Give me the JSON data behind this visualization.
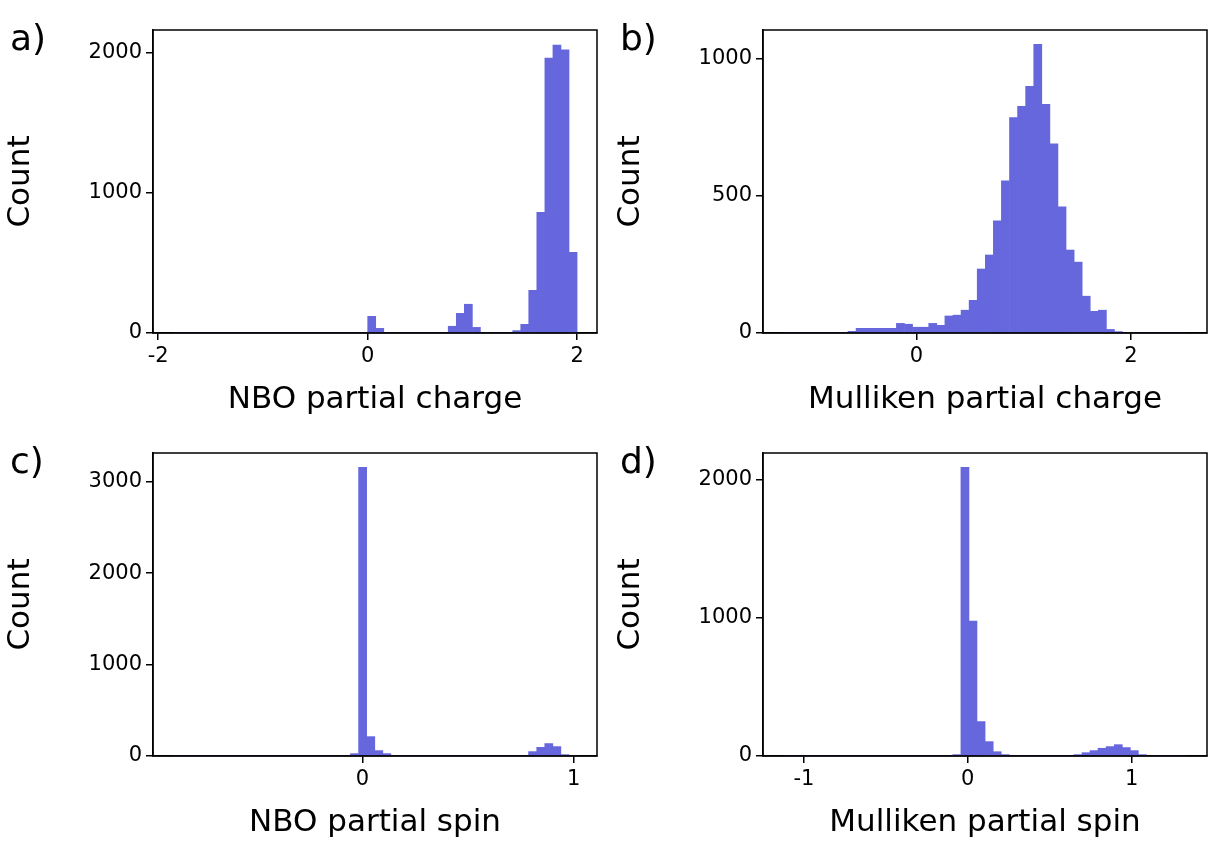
{
  "chart_data": [
    {
      "type": "histogram",
      "title": "a)",
      "xlabel": "NBO partial charge",
      "ylabel": "Count",
      "color": "#6666dd",
      "grid": false,
      "bins": [
        -1.846,
        -1.769,
        -1.692,
        -1.615,
        -1.538,
        -1.462,
        -1.385,
        -1.308,
        -1.231,
        -1.154,
        -1.077,
        -1.0,
        -0.923,
        -0.846,
        -0.769,
        -0.692,
        -0.615,
        -0.538,
        -0.462,
        -0.385,
        -0.308,
        -0.231,
        -0.154,
        -0.077,
        0.0,
        0.077,
        0.154,
        0.231,
        0.308,
        0.385,
        0.462,
        0.538,
        0.615,
        0.692,
        0.769,
        0.846,
        0.923,
        1.0,
        1.077,
        1.154,
        1.231,
        1.308,
        1.385,
        1.462,
        1.538,
        1.615,
        1.692,
        1.769,
        1.846,
        1.923,
        2.0
      ],
      "values": [
        0,
        0,
        0,
        0,
        0,
        0,
        0,
        0,
        0,
        0,
        0,
        0,
        0,
        0,
        0,
        0,
        0,
        0,
        0,
        0,
        0,
        0,
        0,
        0,
        119,
        33,
        0,
        0,
        0,
        0,
        0,
        0,
        0,
        0,
        48,
        140,
        205,
        40,
        0,
        0,
        0,
        0,
        17,
        62,
        304,
        861,
        1960,
        2052,
        2019,
        575
      ],
      "xlim": [
        -2.05,
        2.19
      ],
      "xticks": [
        -2,
        0,
        2
      ],
      "ylim": [
        0,
        2160
      ],
      "yticks": [
        0,
        1000,
        2000
      ]
    },
    {
      "type": "histogram",
      "title": "b)",
      "xlabel": "Mulliken partial charge",
      "ylabel": "Count",
      "color": "#6666dd",
      "grid": false,
      "bins": [
        -1.24,
        -1.165,
        -1.089,
        -1.014,
        -0.939,
        -0.864,
        -0.788,
        -0.713,
        -0.638,
        -0.562,
        -0.487,
        -0.412,
        -0.336,
        -0.261,
        -0.186,
        -0.111,
        -0.035,
        0.04,
        0.115,
        0.191,
        0.266,
        0.341,
        0.417,
        0.492,
        0.567,
        0.643,
        0.718,
        0.793,
        0.868,
        0.944,
        1.019,
        1.094,
        1.17,
        1.245,
        1.32,
        1.396,
        1.471,
        1.546,
        1.621,
        1.697,
        1.772,
        1.847,
        1.923,
        1.998,
        2.073,
        2.149,
        2.224,
        2.299,
        2.374,
        2.45,
        2.525
      ],
      "values": [
        0,
        0,
        0,
        0,
        0,
        0,
        0,
        0,
        6,
        17,
        17,
        17,
        17,
        17,
        35,
        32,
        21,
        21,
        35,
        28,
        62,
        65,
        83,
        119,
        233,
        284,
        408,
        554,
        784,
        825,
        898,
        1051,
        832,
        689,
        459,
        302,
        258,
        134,
        79,
        83,
        13,
        5,
        0,
        0,
        0,
        0,
        0,
        0,
        0,
        0
      ],
      "xlim": [
        -1.43,
        2.71
      ],
      "xticks": [
        0,
        2
      ],
      "ylim": [
        0,
        1103
      ],
      "yticks": [
        0,
        500,
        1000
      ]
    },
    {
      "type": "histogram",
      "title": "c)",
      "xlabel": "NBO partial spin",
      "ylabel": "Count",
      "color": "#6666dd",
      "grid": false,
      "bins": [
        -0.898,
        -0.86,
        -0.821,
        -0.783,
        -0.745,
        -0.707,
        -0.668,
        -0.63,
        -0.592,
        -0.553,
        -0.515,
        -0.477,
        -0.439,
        -0.4,
        -0.362,
        -0.324,
        -0.286,
        -0.247,
        -0.209,
        -0.171,
        -0.132,
        -0.094,
        -0.056,
        -0.018,
        0.021,
        0.059,
        0.097,
        0.135,
        0.174,
        0.212,
        0.25,
        0.289,
        0.327,
        0.365,
        0.403,
        0.442,
        0.48,
        0.518,
        0.557,
        0.595,
        0.633,
        0.671,
        0.71,
        0.748,
        0.786,
        0.825,
        0.863,
        0.901,
        0.939,
        0.978,
        1.016
      ],
      "values": [
        0,
        0,
        0,
        0,
        0,
        0,
        0,
        0,
        0,
        0,
        0,
        0,
        0,
        0,
        0,
        0,
        0,
        0,
        0,
        0,
        0,
        0,
        26,
        3158,
        212,
        59,
        26,
        0,
        0,
        0,
        0,
        0,
        0,
        0,
        0,
        0,
        0,
        0,
        0,
        0,
        0,
        0,
        0,
        0,
        48,
        95,
        136,
        103,
        15,
        0
      ],
      "xlim": [
        -0.99,
        1.11
      ],
      "xticks": [
        0,
        1
      ],
      "ylim": [
        0,
        3315
      ],
      "yticks": [
        0,
        1000,
        2000,
        3000
      ]
    },
    {
      "type": "histogram",
      "title": "d)",
      "xlabel": "Mulliken partial spin",
      "ylabel": "Count",
      "color": "#6666dd",
      "grid": false,
      "bins": [
        -1.126,
        -1.077,
        -1.027,
        -0.978,
        -0.929,
        -0.88,
        -0.83,
        -0.781,
        -0.732,
        -0.683,
        -0.633,
        -0.584,
        -0.535,
        -0.486,
        -0.436,
        -0.387,
        -0.338,
        -0.289,
        -0.239,
        -0.19,
        -0.141,
        -0.092,
        -0.042,
        0.007,
        0.056,
        0.106,
        0.155,
        0.204,
        0.253,
        0.303,
        0.352,
        0.401,
        0.45,
        0.5,
        0.549,
        0.598,
        0.647,
        0.697,
        0.746,
        0.795,
        0.844,
        0.894,
        0.943,
        0.992,
        1.041,
        1.091,
        1.14,
        1.189,
        1.238,
        1.288,
        1.337
      ],
      "values": [
        0,
        0,
        0,
        0,
        0,
        0,
        0,
        0,
        0,
        0,
        0,
        0,
        0,
        0,
        0,
        0,
        0,
        0,
        0,
        0,
        0,
        10,
        2087,
        976,
        249,
        104,
        31,
        10,
        0,
        0,
        0,
        0,
        0,
        0,
        0,
        0,
        10,
        24,
        39,
        56,
        68,
        82,
        61,
        39,
        10,
        0,
        0,
        0,
        0,
        0
      ],
      "xlim": [
        -1.25,
        1.46
      ],
      "xticks": [
        -1,
        0,
        1
      ],
      "ylim": [
        0,
        2191
      ],
      "yticks": [
        0,
        1000,
        2000
      ]
    }
  ]
}
